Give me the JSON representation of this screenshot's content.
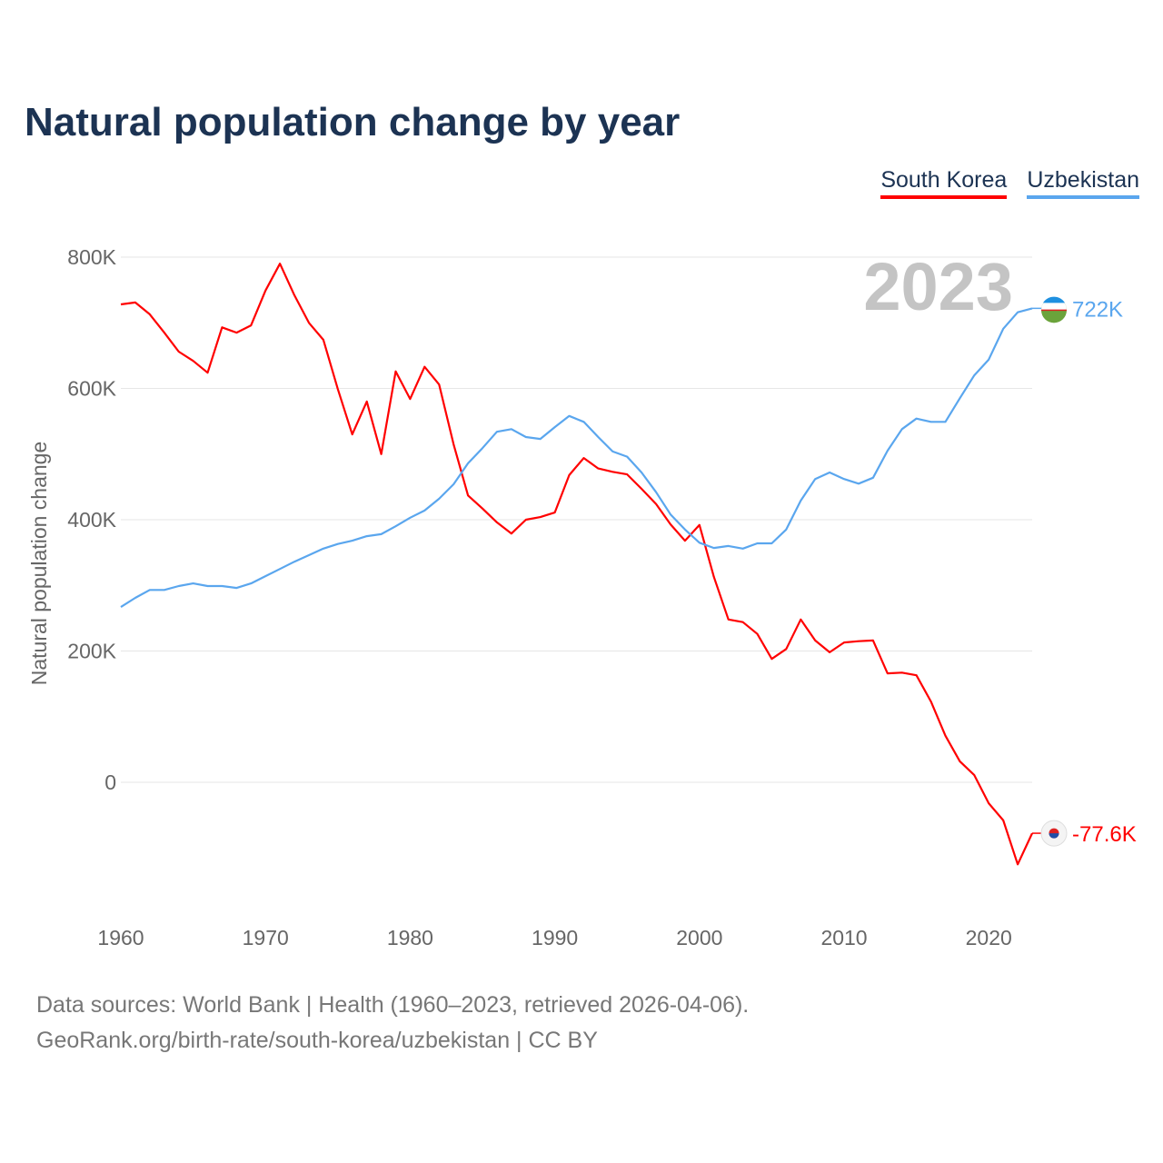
{
  "title": "Natural population change by year",
  "footer": {
    "line1": "Data sources: World Bank | Health (1960–2023, retrieved 2026-04-06).",
    "line2": "GeoRank.org/birth-rate/south-korea/uzbekistan | CC BY"
  },
  "chart_data": {
    "type": "line",
    "title": "Natural population change by year",
    "xlabel": "",
    "ylabel": "Natural population change",
    "xlim": [
      1960,
      2023
    ],
    "ylim": [
      -200000,
      800000
    ],
    "year_label": "2023",
    "grid": true,
    "legend_position": "top-right",
    "x_ticks": [
      1960,
      1970,
      1980,
      1990,
      2000,
      2010,
      2020
    ],
    "x_tick_labels": [
      "1960",
      "1970",
      "1980",
      "1990",
      "2000",
      "2010",
      "2020"
    ],
    "y_ticks": [
      0,
      200000,
      400000,
      600000,
      800000
    ],
    "y_tick_labels": [
      "0",
      "200K",
      "400K",
      "600K",
      "800K"
    ],
    "x": [
      1960,
      1961,
      1962,
      1963,
      1964,
      1965,
      1966,
      1967,
      1968,
      1969,
      1970,
      1971,
      1972,
      1973,
      1974,
      1975,
      1976,
      1977,
      1978,
      1979,
      1980,
      1981,
      1982,
      1983,
      1984,
      1985,
      1986,
      1987,
      1988,
      1989,
      1990,
      1991,
      1992,
      1993,
      1994,
      1995,
      1996,
      1997,
      1998,
      1999,
      2000,
      2001,
      2002,
      2003,
      2004,
      2005,
      2006,
      2007,
      2008,
      2009,
      2010,
      2011,
      2012,
      2013,
      2014,
      2015,
      2016,
      2017,
      2018,
      2019,
      2020,
      2021,
      2022,
      2023
    ],
    "series": [
      {
        "name": "South Korea",
        "color": "#ff0000",
        "end_label": "-77.6K",
        "values": [
          728000,
          731000,
          713000,
          685000,
          656000,
          642000,
          624000,
          693000,
          685000,
          696000,
          749000,
          790000,
          742000,
          700000,
          674000,
          599000,
          530000,
          580000,
          500000,
          626000,
          584000,
          633000,
          606000,
          515000,
          437000,
          417000,
          396000,
          379000,
          400000,
          404000,
          411000,
          468000,
          494000,
          478000,
          473000,
          469000,
          447000,
          424000,
          393000,
          368000,
          392000,
          313000,
          248000,
          244000,
          226000,
          188000,
          203000,
          248000,
          216000,
          198000,
          213000,
          215000,
          216000,
          166000,
          167000,
          163000,
          123000,
          71000,
          32000,
          11000,
          -32000,
          -58000,
          -125000,
          -77600
        ]
      },
      {
        "name": "Uzbekistan",
        "color": "#5aa6ee",
        "end_label": "722K",
        "values": [
          267000,
          281000,
          293000,
          293000,
          299000,
          303000,
          299000,
          299000,
          296000,
          303000,
          314000,
          325000,
          336000,
          346000,
          356000,
          363000,
          368000,
          375000,
          378000,
          390000,
          403000,
          414000,
          432000,
          454000,
          486000,
          509000,
          534000,
          538000,
          526000,
          523000,
          541000,
          558000,
          549000,
          526000,
          504000,
          496000,
          472000,
          442000,
          408000,
          385000,
          365000,
          357000,
          360000,
          356000,
          364000,
          364000,
          385000,
          429000,
          462000,
          472000,
          462000,
          455000,
          464000,
          505000,
          538000,
          554000,
          549000,
          549000,
          585000,
          620000,
          644000,
          691000,
          716000,
          722000
        ]
      }
    ]
  }
}
